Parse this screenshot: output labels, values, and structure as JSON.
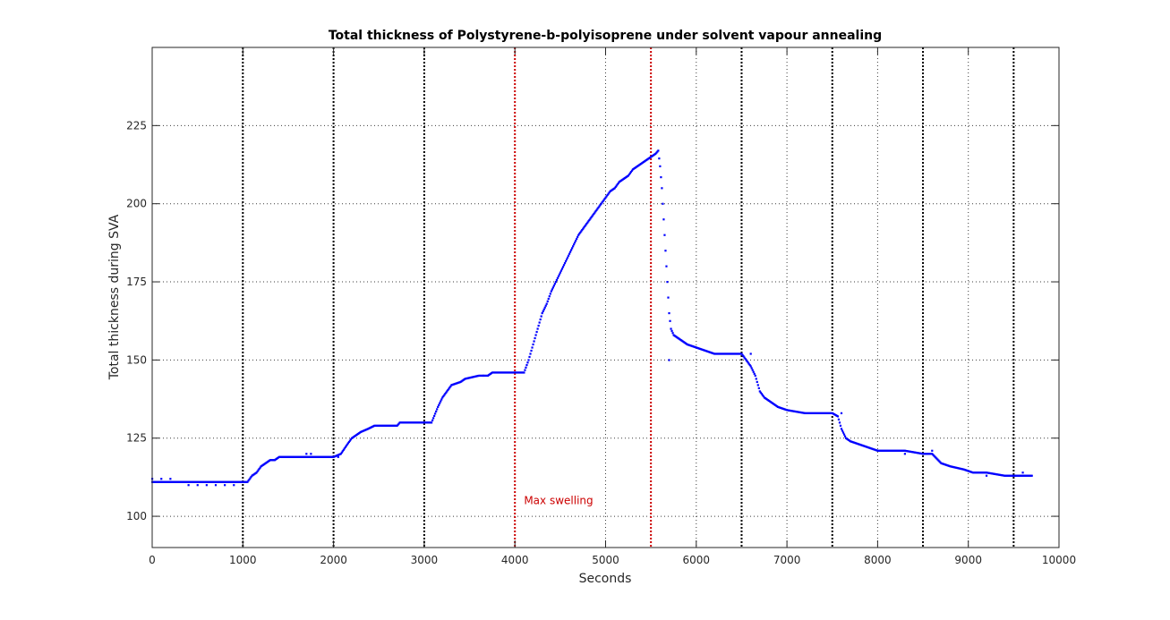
{
  "chart_data": {
    "type": "scatter",
    "title": "Total thickness of Polystyrene-b-polyisoprene under solvent vapour annealing",
    "xlabel": "Seconds",
    "ylabel": "Total thickness during SVA",
    "xlim": [
      0,
      10000
    ],
    "ylim": [
      90,
      250
    ],
    "xticks": [
      "0",
      "1000",
      "2000",
      "3000",
      "4000",
      "5000",
      "6000",
      "7000",
      "8000",
      "9000",
      "10000"
    ],
    "yticks": [
      "100",
      "125",
      "150",
      "175",
      "200",
      "225"
    ],
    "grid": true,
    "vlines": [
      {
        "x": 1000,
        "color": "#000000"
      },
      {
        "x": 2000,
        "color": "#000000"
      },
      {
        "x": 3000,
        "color": "#000000"
      },
      {
        "x": 4000,
        "color": "#cc0000"
      },
      {
        "x": 5500,
        "color": "#cc0000"
      },
      {
        "x": 6500,
        "color": "#000000"
      },
      {
        "x": 7500,
        "color": "#000000"
      },
      {
        "x": 8500,
        "color": "#000000"
      },
      {
        "x": 9500,
        "color": "#000000"
      }
    ],
    "annotation": {
      "text": "Max swelling",
      "x": 4100,
      "y": 105,
      "color": "#cc0000"
    },
    "series": [
      {
        "color": "#0000ff",
        "points": [
          [
            0,
            111
          ],
          [
            1050,
            111
          ],
          [
            1100,
            113
          ],
          [
            1150,
            114
          ],
          [
            1200,
            116
          ],
          [
            1250,
            117
          ],
          [
            1300,
            118
          ],
          [
            1350,
            118
          ],
          [
            1400,
            119
          ],
          [
            2000,
            119
          ],
          [
            2080,
            120
          ],
          [
            2150,
            123
          ],
          [
            2200,
            125
          ],
          [
            2250,
            126
          ],
          [
            2300,
            127
          ],
          [
            2380,
            128
          ],
          [
            2450,
            129
          ],
          [
            2700,
            129
          ],
          [
            2730,
            130
          ],
          [
            3080,
            130
          ],
          [
            3150,
            135
          ],
          [
            3200,
            138
          ],
          [
            3250,
            140
          ],
          [
            3300,
            142
          ],
          [
            3400,
            143
          ],
          [
            3450,
            144
          ],
          [
            3600,
            145
          ],
          [
            3700,
            145
          ],
          [
            3750,
            146
          ],
          [
            4100,
            146
          ],
          [
            4150,
            150
          ],
          [
            4200,
            155
          ],
          [
            4250,
            160
          ],
          [
            4300,
            165
          ],
          [
            4350,
            168
          ],
          [
            4400,
            172
          ],
          [
            4450,
            175
          ],
          [
            4500,
            178
          ],
          [
            4550,
            181
          ],
          [
            4600,
            184
          ],
          [
            4650,
            187
          ],
          [
            4700,
            190
          ],
          [
            4750,
            192
          ],
          [
            4800,
            194
          ],
          [
            4850,
            196
          ],
          [
            4900,
            198
          ],
          [
            4950,
            200
          ],
          [
            5000,
            202
          ],
          [
            5050,
            204
          ],
          [
            5100,
            205
          ],
          [
            5150,
            207
          ],
          [
            5200,
            208
          ],
          [
            5250,
            209
          ],
          [
            5300,
            211
          ],
          [
            5350,
            212
          ],
          [
            5400,
            213
          ],
          [
            5450,
            214
          ],
          [
            5500,
            215
          ],
          [
            5550,
            216
          ],
          [
            5580,
            217
          ],
          [
            5600,
            212
          ],
          [
            5620,
            205
          ],
          [
            5640,
            195
          ],
          [
            5660,
            185
          ],
          [
            5680,
            175
          ],
          [
            5700,
            165
          ],
          [
            5720,
            160
          ],
          [
            5750,
            158
          ],
          [
            5800,
            157
          ],
          [
            5850,
            156
          ],
          [
            5900,
            155
          ],
          [
            6000,
            154
          ],
          [
            6100,
            153
          ],
          [
            6200,
            152
          ],
          [
            6500,
            152
          ],
          [
            6600,
            148
          ],
          [
            6650,
            145
          ],
          [
            6700,
            140
          ],
          [
            6750,
            138
          ],
          [
            6800,
            137
          ],
          [
            6850,
            136
          ],
          [
            6900,
            135
          ],
          [
            7000,
            134
          ],
          [
            7200,
            133
          ],
          [
            7500,
            133
          ],
          [
            7560,
            132
          ],
          [
            7600,
            128
          ],
          [
            7650,
            125
          ],
          [
            7700,
            124
          ],
          [
            7800,
            123
          ],
          [
            7900,
            122
          ],
          [
            8000,
            121
          ],
          [
            8300,
            121
          ],
          [
            8500,
            120
          ],
          [
            8600,
            120
          ],
          [
            8700,
            117
          ],
          [
            8800,
            116
          ],
          [
            8950,
            115
          ],
          [
            9050,
            114
          ],
          [
            9200,
            114
          ],
          [
            9400,
            113
          ],
          [
            9700,
            113
          ]
        ]
      }
    ],
    "outliers": [
      [
        0,
        112
      ],
      [
        100,
        112
      ],
      [
        200,
        112
      ],
      [
        400,
        110
      ],
      [
        500,
        110
      ],
      [
        600,
        110
      ],
      [
        700,
        110
      ],
      [
        800,
        110
      ],
      [
        900,
        110
      ],
      [
        1700,
        120
      ],
      [
        1750,
        120
      ],
      [
        2050,
        119
      ],
      [
        3650,
        145
      ],
      [
        5700,
        150
      ],
      [
        6600,
        152
      ],
      [
        7600,
        133
      ],
      [
        8300,
        120
      ],
      [
        8600,
        121
      ],
      [
        9200,
        113
      ],
      [
        9600,
        114
      ]
    ]
  }
}
